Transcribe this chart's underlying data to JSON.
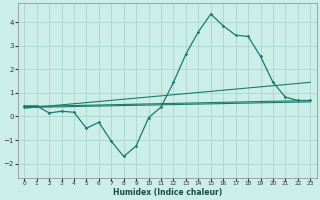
{
  "xlabel": "Humidex (Indice chaleur)",
  "bg_color": "#cceee8",
  "grid_color": "#aad4ce",
  "line_color": "#1a7a6e",
  "xlim": [
    -0.5,
    23.5
  ],
  "ylim": [
    -2.6,
    4.8
  ],
  "yticks": [
    -2,
    -1,
    0,
    1,
    2,
    3,
    4
  ],
  "xticks": [
    0,
    1,
    2,
    3,
    4,
    5,
    6,
    7,
    8,
    9,
    10,
    11,
    12,
    13,
    14,
    15,
    16,
    17,
    18,
    19,
    20,
    21,
    22,
    23
  ],
  "line1_x": [
    0,
    1,
    2,
    3,
    4,
    5,
    6,
    7,
    8,
    9,
    10,
    11,
    12,
    13,
    14,
    15,
    16,
    17,
    18,
    19,
    20,
    21,
    22,
    23
  ],
  "line1_y": [
    0.45,
    0.45,
    0.15,
    0.22,
    0.18,
    -0.5,
    -0.25,
    -1.05,
    -1.7,
    -1.25,
    -0.05,
    0.4,
    1.45,
    2.65,
    3.6,
    4.35,
    3.85,
    3.45,
    3.4,
    2.55,
    1.45,
    0.82,
    0.68,
    0.68
  ],
  "line2_x": [
    0,
    23
  ],
  "line2_y": [
    0.42,
    0.68
  ],
  "line3_x": [
    0,
    23
  ],
  "line3_y": [
    0.38,
    0.62
  ],
  "line4_x": [
    0,
    23
  ],
  "line4_y": [
    0.35,
    1.45
  ]
}
